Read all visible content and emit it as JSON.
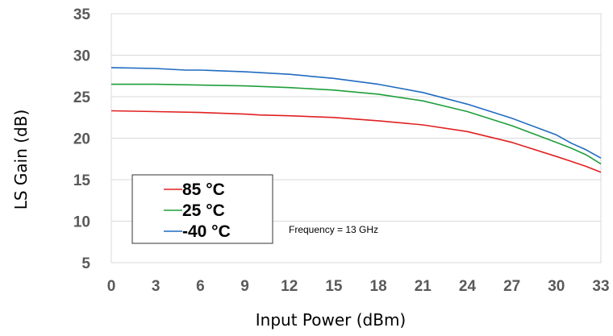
{
  "chart_data": {
    "type": "line",
    "title": "",
    "xlabel": "Input Power (dBm)",
    "ylabel": "LS Gain (dB)",
    "xlim": [
      0,
      33
    ],
    "ylim": [
      5,
      35
    ],
    "x_ticks": [
      "0",
      "3",
      "6",
      "9",
      "12",
      "15",
      "18",
      "21",
      "24",
      "27",
      "30",
      "33"
    ],
    "y_ticks": [
      "5",
      "10",
      "15",
      "20",
      "25",
      "30",
      "35"
    ],
    "grid": "horizontal",
    "legend_position": "bottom-left",
    "annotation": "Frequency = 13 GHz",
    "series": [
      {
        "name": "85 °C",
        "color": "#e02020",
        "x": [
          0,
          3,
          6,
          9,
          10,
          12,
          15,
          18,
          21,
          24,
          27,
          30,
          31,
          32,
          33
        ],
        "values": [
          23.3,
          23.2,
          23.1,
          22.9,
          22.8,
          22.7,
          22.5,
          22.1,
          21.6,
          20.8,
          19.5,
          17.8,
          17.2,
          16.6,
          15.9
        ]
      },
      {
        "name": "25 °C",
        "color": "#1e9e3a",
        "x": [
          0,
          3,
          6,
          9,
          12,
          15,
          18,
          21,
          24,
          27,
          30,
          31,
          32,
          33
        ],
        "values": [
          26.5,
          26.5,
          26.4,
          26.3,
          26.1,
          25.8,
          25.3,
          24.5,
          23.2,
          21.5,
          19.5,
          18.8,
          18.0,
          16.9
        ]
      },
      {
        "name": "-40 °C",
        "color": "#1f6bc0",
        "x": [
          0,
          3,
          5,
          6,
          9,
          12,
          15,
          18,
          21,
          24,
          27,
          30,
          31,
          32,
          33
        ],
        "values": [
          28.5,
          28.4,
          28.2,
          28.2,
          28.0,
          27.7,
          27.2,
          26.5,
          25.5,
          24.1,
          22.4,
          20.4,
          19.4,
          18.6,
          17.6
        ]
      }
    ]
  }
}
